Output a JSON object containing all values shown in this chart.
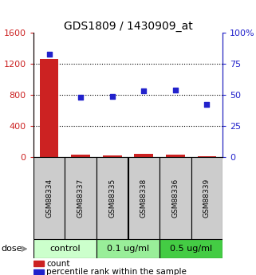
{
  "title": "GDS1809 / 1430909_at",
  "samples": [
    "GSM88334",
    "GSM88337",
    "GSM88335",
    "GSM88338",
    "GSM88336",
    "GSM88339"
  ],
  "counts": [
    1260,
    30,
    20,
    35,
    25,
    10
  ],
  "percentiles": [
    83,
    48,
    49,
    53,
    54,
    42
  ],
  "ylim_left": [
    0,
    1600
  ],
  "ylim_right": [
    0,
    100
  ],
  "yticks_left": [
    0,
    400,
    800,
    1200,
    1600
  ],
  "ytick_labels_left": [
    "0",
    "400",
    "800",
    "1200",
    "1600"
  ],
  "yticks_right": [
    0,
    25,
    50,
    75,
    100
  ],
  "ytick_labels_right": [
    "0",
    "25",
    "50",
    "75",
    "100%"
  ],
  "bar_color": "#cc2222",
  "scatter_color": "#2222cc",
  "dose_groups": [
    {
      "label": "control",
      "span": [
        0,
        2
      ],
      "color": "#ccffcc"
    },
    {
      "label": "0.1 ug/ml",
      "span": [
        2,
        4
      ],
      "color": "#99ee99"
    },
    {
      "label": "0.5 ug/ml",
      "span": [
        4,
        6
      ],
      "color": "#44cc44"
    }
  ],
  "dose_label": "dose",
  "sample_box_color": "#cccccc",
  "legend_count_label": "count",
  "legend_pct_label": "percentile rank within the sample",
  "background_color": "#ffffff"
}
